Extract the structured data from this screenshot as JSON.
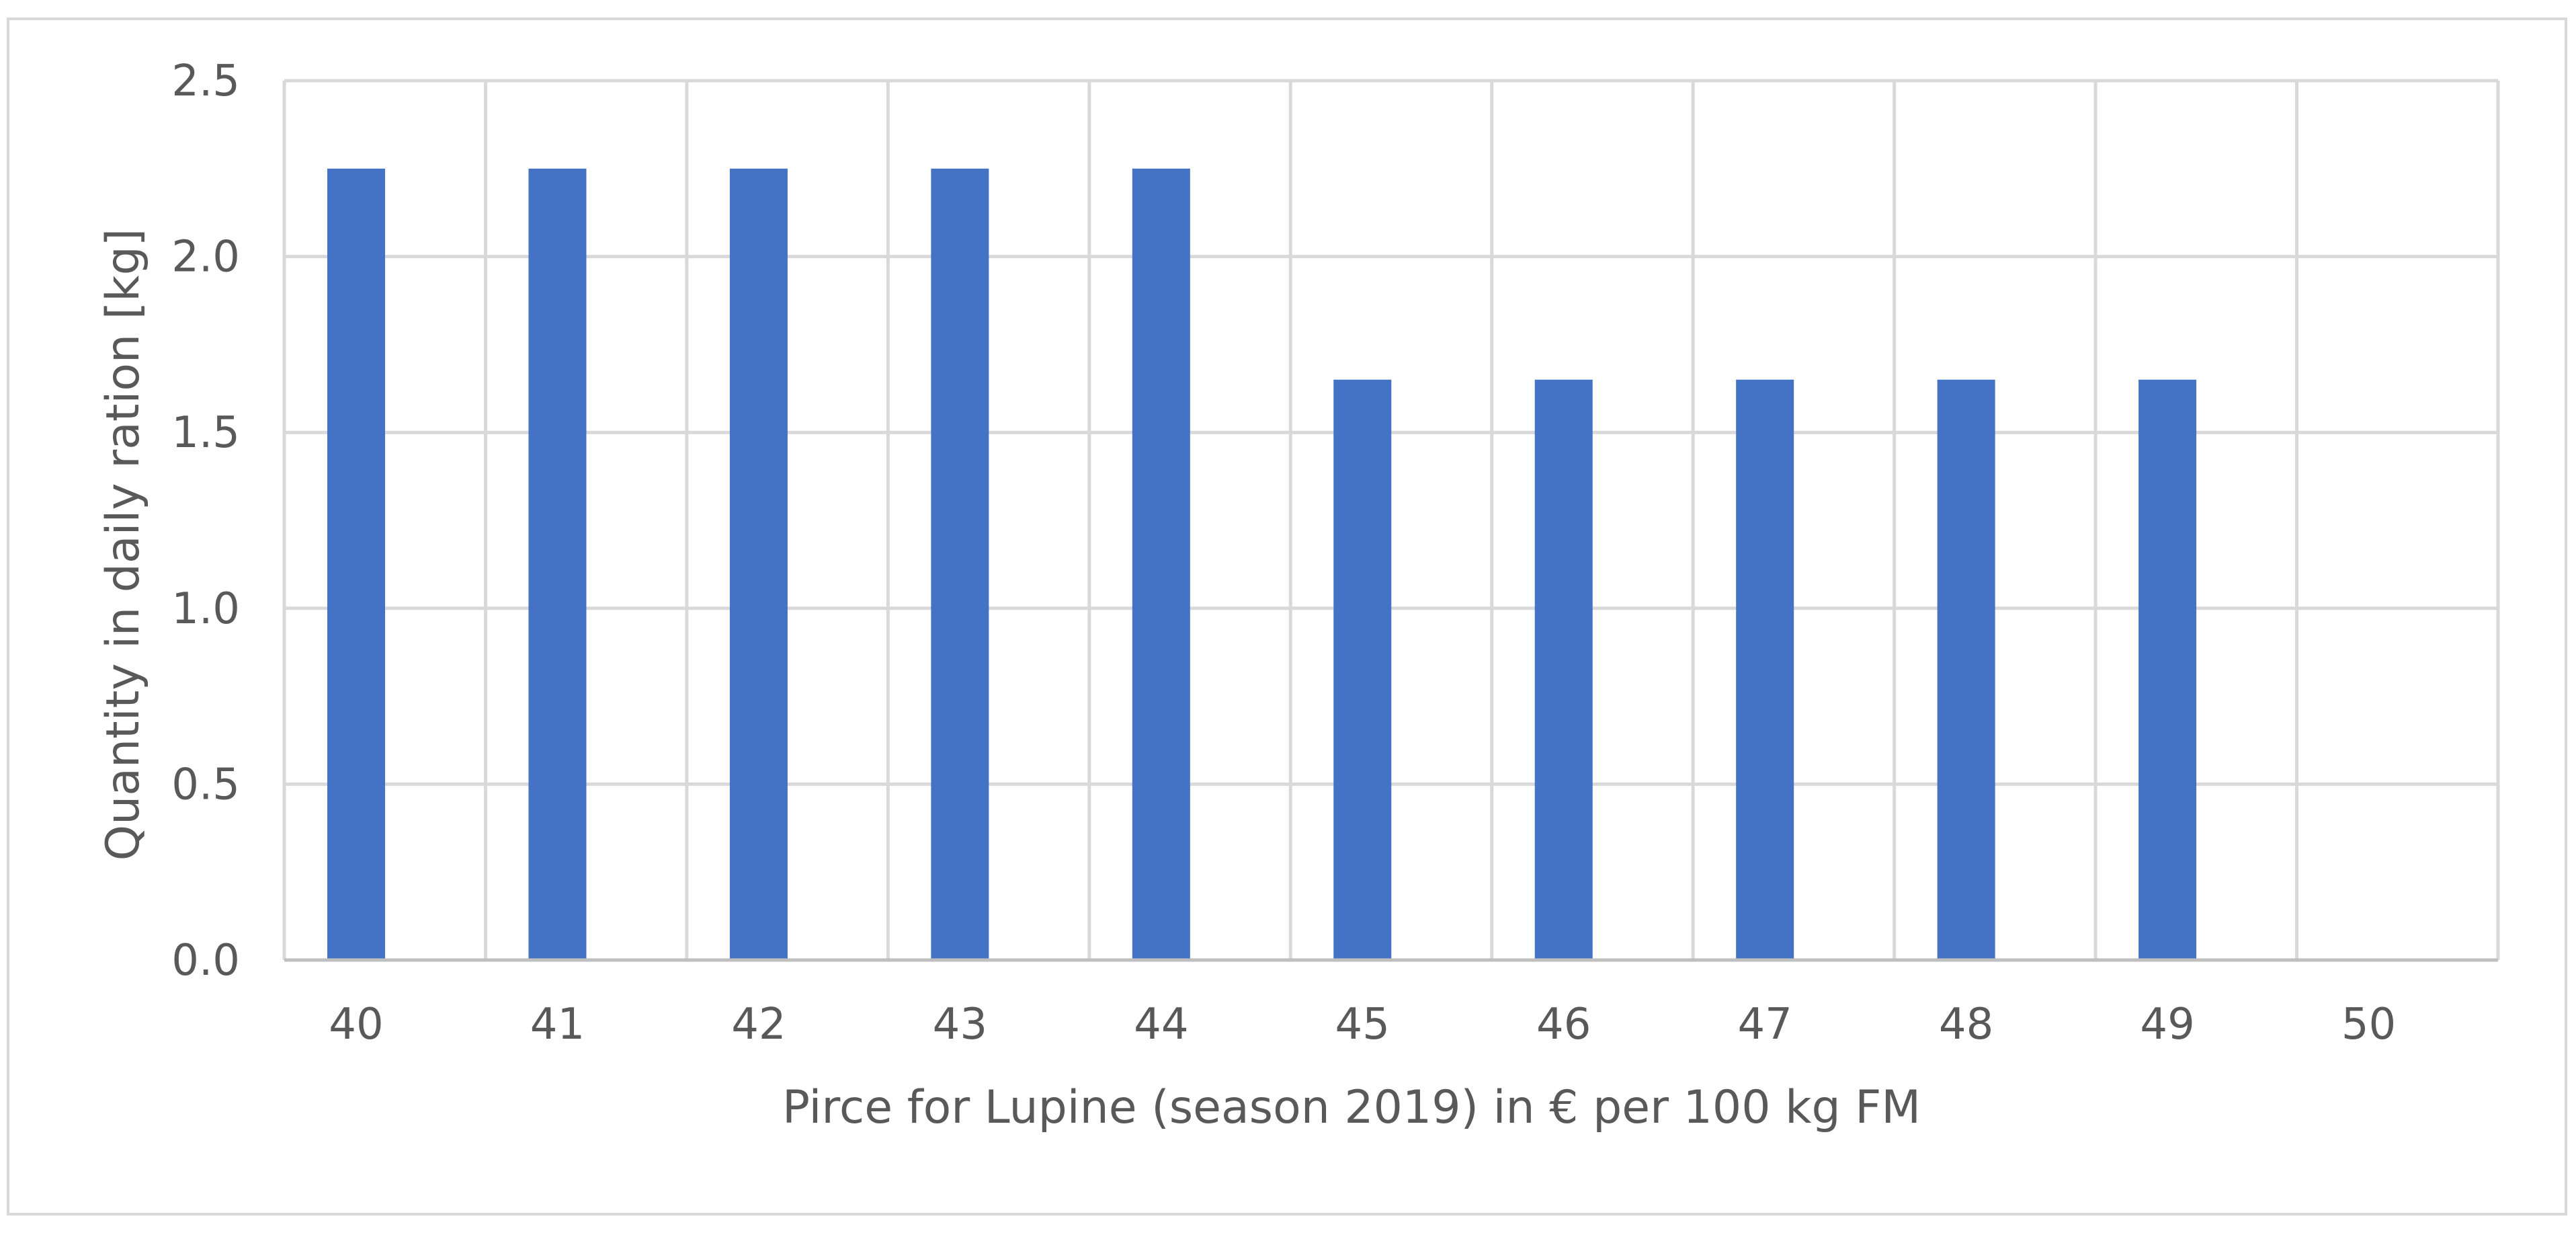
{
  "chart_data": {
    "type": "bar",
    "title": "",
    "xlabel": "Pirce for Lupine (season 2019) in € per 100 kg FM",
    "ylabel": "Quantity in daily ration [kg]",
    "categories": [
      "40",
      "41",
      "42",
      "43",
      "44",
      "45",
      "46",
      "47",
      "48",
      "49",
      "50"
    ],
    "series": [
      {
        "values": [
          2.25,
          2.25,
          2.25,
          2.25,
          2.25,
          1.65,
          1.65,
          1.65,
          1.65,
          1.65,
          0
        ]
      }
    ],
    "ylim": [
      0,
      2.5
    ],
    "yticks": [
      "0.0",
      "0.5",
      "1.0",
      "1.5",
      "2.0",
      "2.5"
    ],
    "grid": true,
    "legend": "none",
    "colors": {
      "bar": "#4472C4",
      "grid": "#D9D9D9",
      "axis": "#BFBFBF",
      "text": "#595959",
      "frame": "#D9D9D9"
    }
  }
}
